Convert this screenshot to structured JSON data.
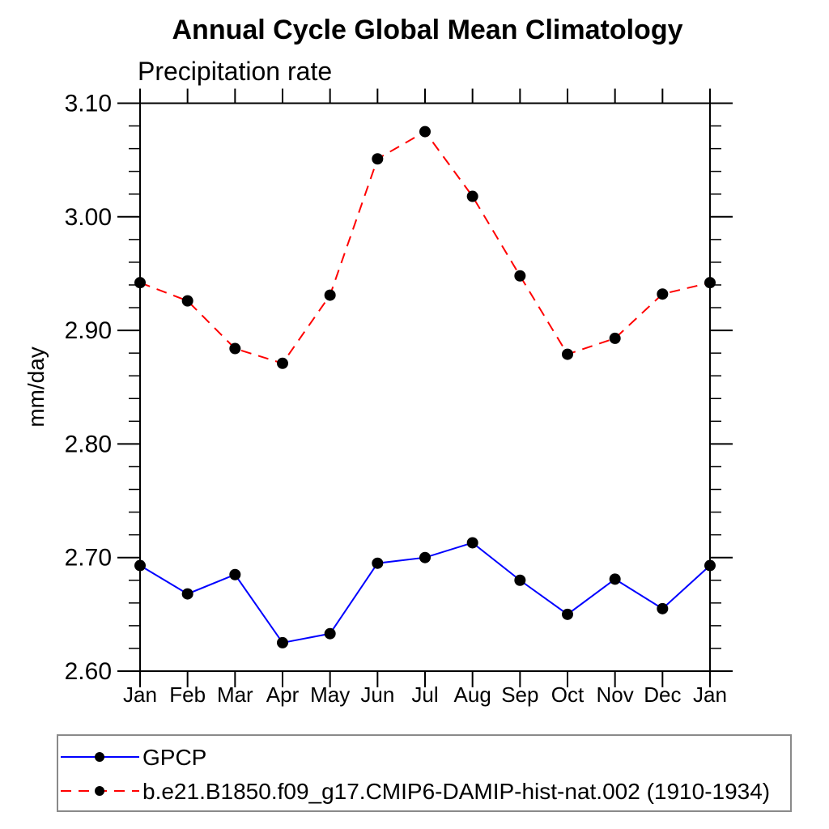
{
  "chart_data": {
    "type": "line",
    "title": "Annual Cycle Global Mean Climatology",
    "subtitle": "Precipitation rate",
    "ylabel": "mm/day",
    "categories": [
      "Jan",
      "Feb",
      "Mar",
      "Apr",
      "May",
      "Jun",
      "Jul",
      "Aug",
      "Sep",
      "Oct",
      "Nov",
      "Dec",
      "Jan"
    ],
    "ylim": [
      2.6,
      3.1
    ],
    "y_major_ticks": [
      "2.60",
      "2.70",
      "2.80",
      "2.90",
      "3.00",
      "3.10"
    ],
    "y_minor_step": 0.02,
    "grid": false,
    "legend_position": "bottom-left-box",
    "marker": {
      "shape": "filled-circle",
      "color": "#000000"
    },
    "axis_color": "#000000",
    "legend_border_color": "#8a8a8a",
    "series": [
      {
        "name": "GPCP",
        "color": "#0000ff",
        "line_style": "solid",
        "values": [
          2.693,
          2.668,
          2.685,
          2.625,
          2.633,
          2.695,
          2.7,
          2.713,
          2.68,
          2.65,
          2.681,
          2.655,
          2.693
        ]
      },
      {
        "name": "b.e21.B1850.f09_g17.CMIP6-DAMIP-hist-nat.002 (1910-1934)",
        "color": "#ff0000",
        "line_style": "dashed",
        "values": [
          2.942,
          2.926,
          2.884,
          2.871,
          2.931,
          3.051,
          3.075,
          3.018,
          2.948,
          2.879,
          2.893,
          2.932,
          2.942
        ]
      }
    ]
  }
}
